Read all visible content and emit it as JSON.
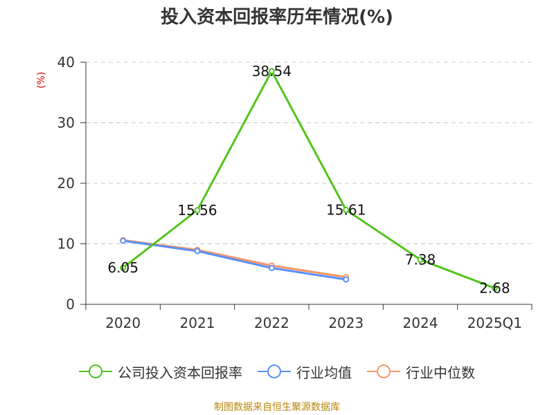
{
  "chart_data": {
    "type": "line",
    "title": "投入资本回报率历年情况(%)",
    "ylabel": "(%)",
    "xlabel": "",
    "categories": [
      "2020",
      "2021",
      "2022",
      "2023",
      "2024",
      "2025Q1"
    ],
    "ylim": [
      0,
      40
    ],
    "yticks": [
      0,
      10,
      20,
      30,
      40
    ],
    "grid": true,
    "legend_position": "bottom",
    "series": [
      {
        "name": "公司投入资本回报率",
        "color": "#52c41a",
        "values": [
          6.05,
          15.56,
          38.54,
          15.61,
          7.38,
          2.68
        ],
        "labels": [
          "6.05",
          "15.56",
          "38.54",
          "15.61",
          "7.38",
          "2.68"
        ],
        "show_labels": true
      },
      {
        "name": "行业均值",
        "color": "#5b8ff9",
        "values": [
          10.5,
          8.8,
          6.0,
          4.1,
          null,
          null
        ],
        "show_labels": false
      },
      {
        "name": "行业中位数",
        "color": "#f79767",
        "values": [
          10.6,
          9.0,
          6.4,
          4.5,
          null,
          null
        ],
        "show_labels": false
      }
    ]
  },
  "source": "制图数据来自恒生聚源数据库"
}
